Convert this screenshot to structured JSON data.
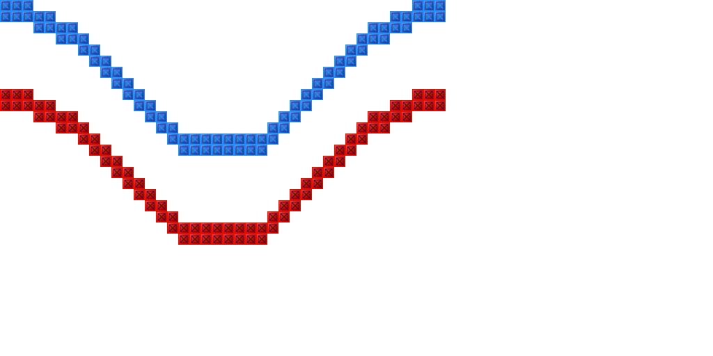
{
  "tracks": [
    {
      "color": "#1a5fe0"
    },
    {
      "color": "#c00000"
    }
  ]
}
